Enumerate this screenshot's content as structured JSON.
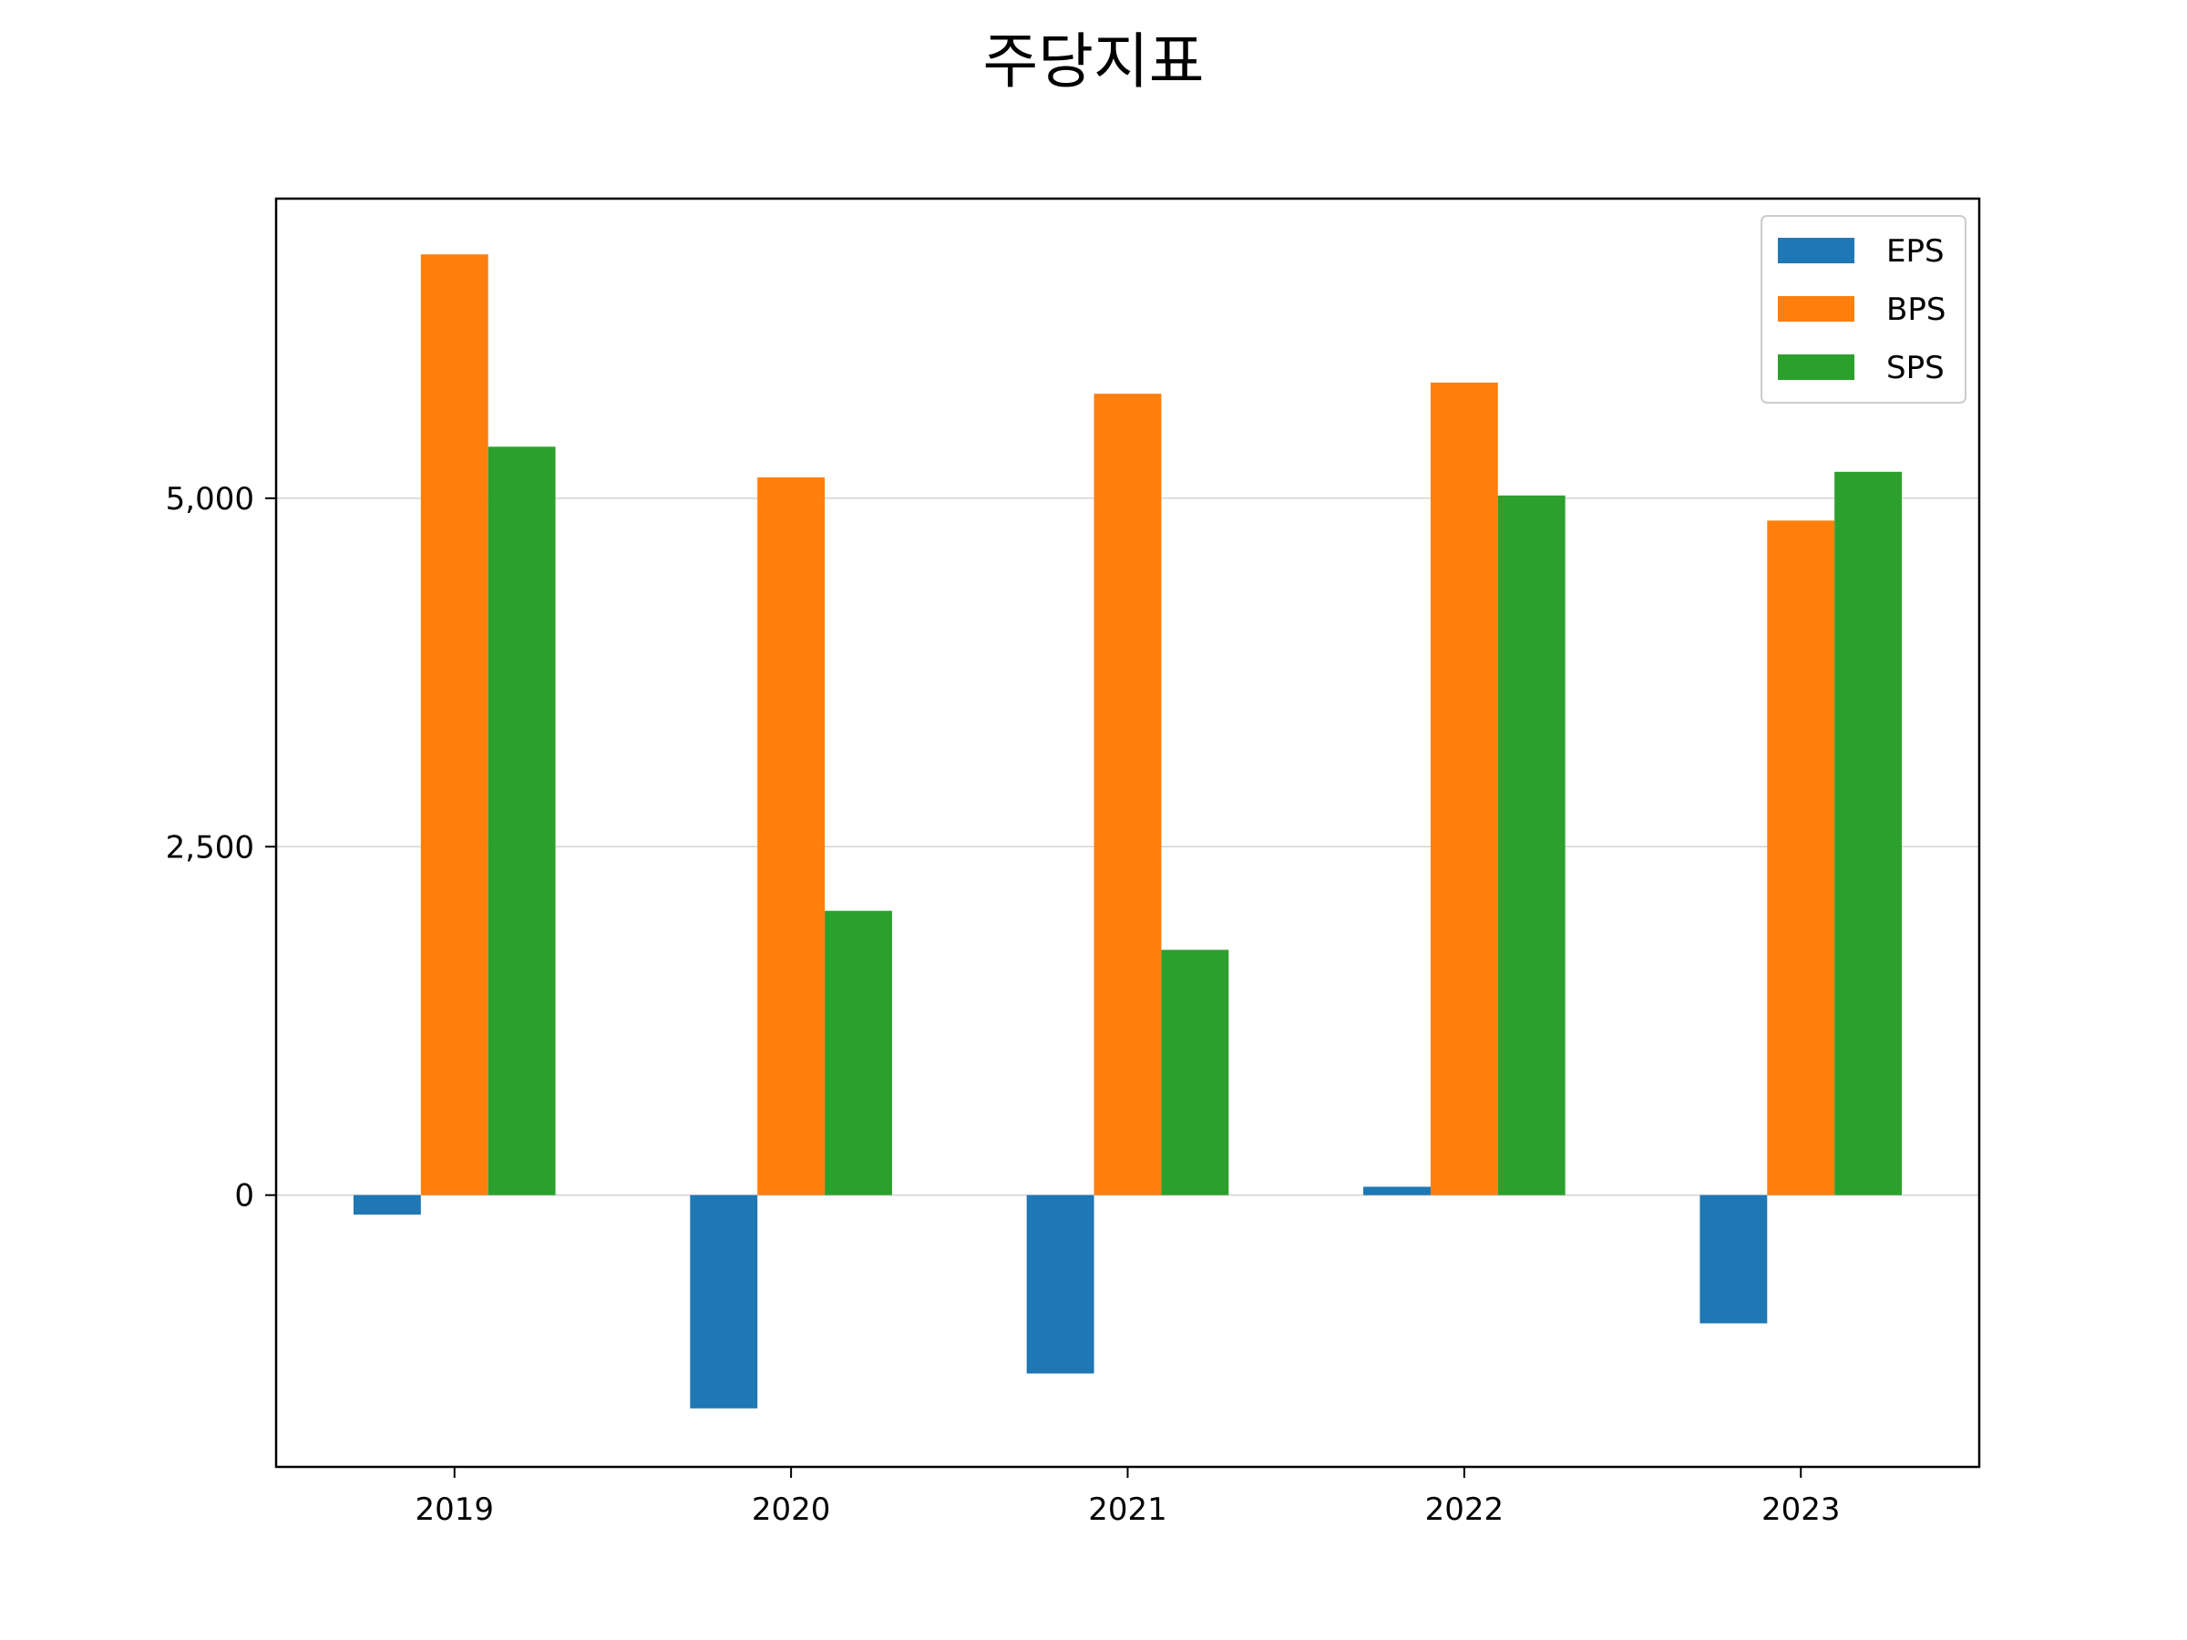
{
  "chart_data": {
    "type": "bar",
    "title": "주당지표",
    "xlabel": "",
    "ylabel": "",
    "categories": [
      "2019",
      "2020",
      "2021",
      "2022",
      "2023"
    ],
    "series": [
      {
        "name": "EPS",
        "color": "#1f77b4",
        "values": [
          -140,
          -1530,
          -1280,
          60,
          -920
        ]
      },
      {
        "name": "BPS",
        "color": "#ff7f0e",
        "values": [
          6750,
          5150,
          5750,
          5830,
          4840
        ]
      },
      {
        "name": "SPS",
        "color": "#2ca02c",
        "values": [
          5370,
          2040,
          1760,
          5020,
          5190
        ]
      }
    ],
    "ylim": [
      -1950,
      7150
    ],
    "yticks": [
      0,
      2500,
      5000
    ],
    "ytick_labels": [
      "0",
      "2,500",
      "5,000"
    ],
    "grid": "y",
    "legend": "top-right"
  }
}
